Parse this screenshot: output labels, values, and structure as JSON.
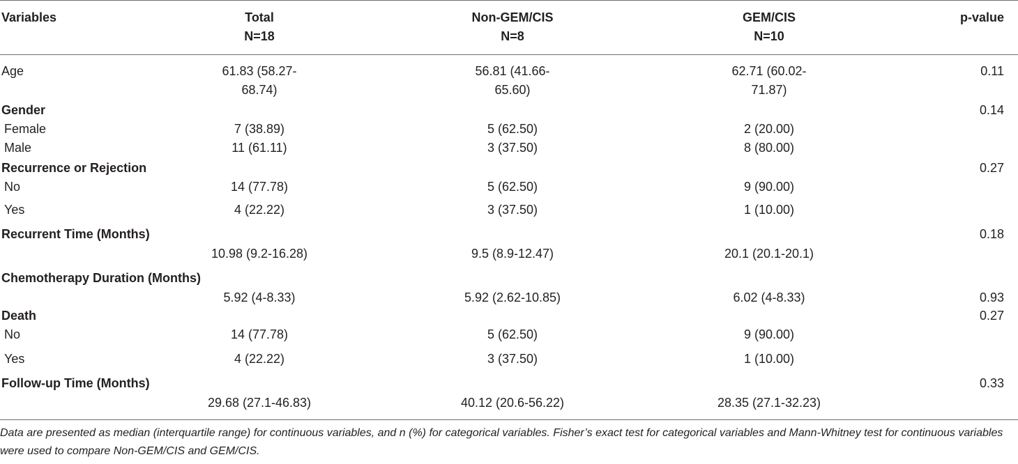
{
  "table": {
    "header": {
      "variables": "Variables",
      "total": "Total",
      "total_n": "N=18",
      "nongem": "Non-GEM/CIS",
      "nongem_n": "N=8",
      "gem": "GEM/CIS",
      "gem_n": "N=10",
      "pvalue": "p-value"
    },
    "rows": [
      {
        "label": "Age",
        "total": "61.83 (58.27-",
        "nongem": "56.81 (41.66-",
        "gem": "62.71 (60.02-",
        "p": "0.11"
      },
      {
        "label": "",
        "total": "68.74)",
        "nongem": "65.60)",
        "gem": "71.87)",
        "p": ""
      },
      {
        "label": "Gender",
        "total": "",
        "nongem": "",
        "gem": "",
        "p": "0.14"
      },
      {
        "label": "Female",
        "total": "7 (38.89)",
        "nongem": "5 (62.50)",
        "gem": "2 (20.00)",
        "p": ""
      },
      {
        "label": "Male",
        "total": "11 (61.11)",
        "nongem": "3 (37.50)",
        "gem": "8 (80.00)",
        "p": ""
      },
      {
        "label": "Recurrence or Rejection",
        "total": "",
        "nongem": "",
        "gem": "",
        "p": "0.27"
      },
      {
        "label": "No",
        "total": "14 (77.78)",
        "nongem": "5 (62.50)",
        "gem": "9 (90.00)",
        "p": ""
      },
      {
        "label": "Yes",
        "total": "4 (22.22)",
        "nongem": "3 (37.50)",
        "gem": "1 (10.00)",
        "p": ""
      },
      {
        "label": "Recurrent Time (Months)",
        "total": "",
        "nongem": "",
        "gem": "",
        "p": "0.18"
      },
      {
        "label": "",
        "total": "10.98 (9.2-16.28)",
        "nongem": "9.5 (8.9-12.47)",
        "gem": "20.1 (20.1-20.1)",
        "p": ""
      },
      {
        "label": "Chemotherapy Duration (Months)",
        "total": "",
        "nongem": "",
        "gem": "",
        "p": ""
      },
      {
        "label": "",
        "total": "5.92 (4-8.33)",
        "nongem": "5.92 (2.62-10.85)",
        "gem": "6.02 (4-8.33)",
        "p": "0.93"
      },
      {
        "label": "Death",
        "total": "",
        "nongem": "",
        "gem": "",
        "p": "0.27"
      },
      {
        "label": "No",
        "total": "14 (77.78)",
        "nongem": "5 (62.50)",
        "gem": "9 (90.00)",
        "p": ""
      },
      {
        "label": "Yes",
        "total": "4 (22.22)",
        "nongem": "3 (37.50)",
        "gem": "1 (10.00)",
        "p": ""
      },
      {
        "label": "Follow-up Time (Months)",
        "total": "",
        "nongem": "",
        "gem": "",
        "p": "0.33"
      },
      {
        "label": "",
        "total": "29.68 (27.1-46.83)",
        "nongem": "40.12 (20.6-56.22)",
        "gem": "28.35 (27.1-32.23)",
        "p": ""
      }
    ],
    "footnote": "Data are presented as median (interquartile range) for continuous variables, and n (%) for categorical variables. Fisher’s exact test for categorical variables and Mann-Whitney test for continuous variables were used to compare Non-GEM/CIS and GEM/CIS."
  }
}
